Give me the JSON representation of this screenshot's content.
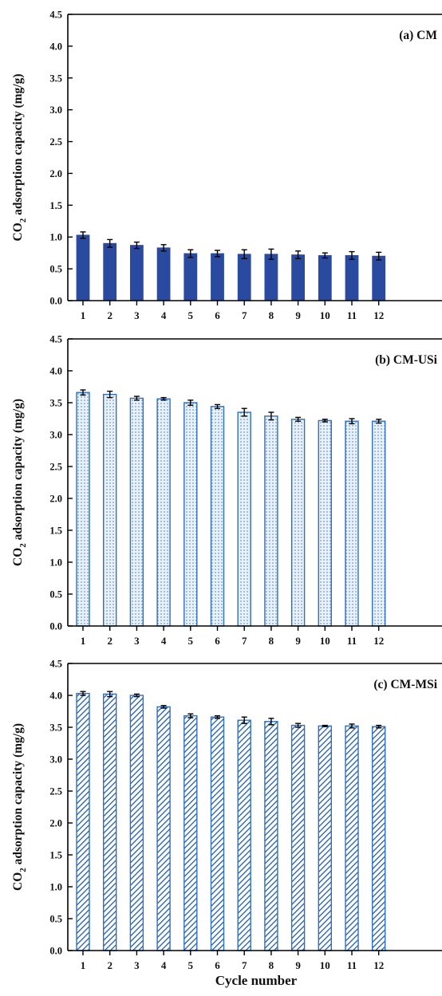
{
  "figure": {
    "ylabel_prefix": "CO",
    "ylabel_sub": "2",
    "ylabel_suffix": " adsorption capacity (mg/g)",
    "xlabel": "Cycle number"
  },
  "colors": {
    "bar_fill_a": "#2a4aa0",
    "bar_stroke": "#2f6fbf",
    "dots_fill": "#e9f2fb",
    "hatch_color": "#1f5bb0",
    "axis": "#000000"
  },
  "chart_data": [
    {
      "type": "bar",
      "panel_label": "(a) CM",
      "style": "solid",
      "categories": [
        "1",
        "2",
        "3",
        "4",
        "5",
        "6",
        "7",
        "8",
        "9",
        "10",
        "11",
        "12"
      ],
      "values": [
        1.03,
        0.9,
        0.87,
        0.83,
        0.74,
        0.74,
        0.73,
        0.73,
        0.72,
        0.71,
        0.71,
        0.7
      ],
      "errors": [
        0.05,
        0.06,
        0.05,
        0.05,
        0.06,
        0.05,
        0.07,
        0.08,
        0.06,
        0.04,
        0.06,
        0.06
      ],
      "ylim": [
        0,
        4.5
      ],
      "yticks": [
        "0.0",
        "0.5",
        "1.0",
        "1.5",
        "2.0",
        "2.5",
        "3.0",
        "3.5",
        "4.0",
        "4.5"
      ],
      "grid": false
    },
    {
      "type": "bar",
      "panel_label": "(b) CM-USi",
      "style": "dotted",
      "categories": [
        "1",
        "2",
        "3",
        "4",
        "5",
        "6",
        "7",
        "8",
        "9",
        "10",
        "11",
        "12"
      ],
      "values": [
        3.66,
        3.63,
        3.57,
        3.56,
        3.5,
        3.44,
        3.35,
        3.29,
        3.24,
        3.22,
        3.21,
        3.21
      ],
      "errors": [
        0.04,
        0.05,
        0.03,
        0.02,
        0.04,
        0.03,
        0.06,
        0.06,
        0.03,
        0.02,
        0.04,
        0.03
      ],
      "ylim": [
        0,
        4.5
      ],
      "yticks": [
        "0.0",
        "0.5",
        "1.0",
        "1.5",
        "2.0",
        "2.5",
        "3.0",
        "3.5",
        "4.0",
        "4.5"
      ],
      "grid": false
    },
    {
      "type": "bar",
      "panel_label": "(c) CM-MSi",
      "style": "hatched",
      "categories": [
        "1",
        "2",
        "3",
        "4",
        "5",
        "6",
        "7",
        "8",
        "9",
        "10",
        "11",
        "12"
      ],
      "values": [
        4.03,
        4.02,
        4.0,
        3.82,
        3.68,
        3.66,
        3.61,
        3.59,
        3.53,
        3.52,
        3.52,
        3.51
      ],
      "errors": [
        0.03,
        0.04,
        0.02,
        0.02,
        0.03,
        0.02,
        0.05,
        0.05,
        0.03,
        0.01,
        0.03,
        0.02
      ],
      "ylim": [
        0,
        4.5
      ],
      "yticks": [
        "0.0",
        "0.5",
        "1.0",
        "1.5",
        "2.0",
        "2.5",
        "3.0",
        "3.5",
        "4.0",
        "4.5"
      ],
      "grid": false
    }
  ]
}
